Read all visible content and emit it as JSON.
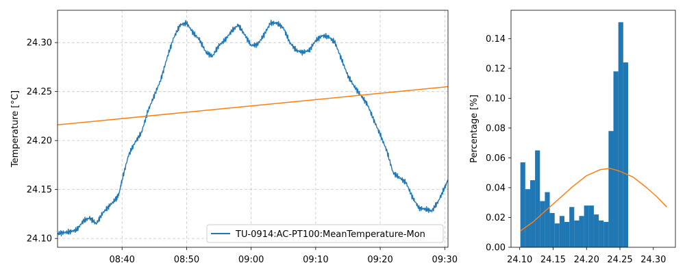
{
  "chart_data": [
    {
      "type": "line",
      "title": "",
      "xlabel": "",
      "ylabel": "Temperature [°C]",
      "x_unit": "time (HH:MM)",
      "xlim": [
        "08:30:00",
        "09:30:30"
      ],
      "ylim": [
        24.091,
        24.333
      ],
      "xticks": [
        "08:40",
        "08:50",
        "09:00",
        "09:10",
        "09:20",
        "09:30"
      ],
      "yticks": [
        "24.10",
        "24.15",
        "24.20",
        "24.25",
        "24.30"
      ],
      "grid": true,
      "legend": {
        "position": "lower-right",
        "entries": [
          "TU-0914:AC-PT100:MeanTemperature-Mon"
        ]
      },
      "series": [
        {
          "name": "TU-0914:AC-PT100:MeanTemperature-Mon",
          "color": "#1f77b4",
          "points": [
            [
              "08:30:00",
              24.105
            ],
            [
              "08:31:00",
              24.106
            ],
            [
              "08:32:00",
              24.107
            ],
            [
              "08:33:00",
              24.109
            ],
            [
              "08:34:00",
              24.118
            ],
            [
              "08:35:00",
              24.121
            ],
            [
              "08:36:00",
              24.115
            ],
            [
              "08:37:00",
              24.126
            ],
            [
              "08:38:00",
              24.133
            ],
            [
              "08:39:00",
              24.14
            ],
            [
              "08:39:30",
              24.145
            ],
            [
              "08:40:00",
              24.16
            ],
            [
              "08:41:00",
              24.185
            ],
            [
              "08:42:00",
              24.198
            ],
            [
              "08:43:00",
              24.208
            ],
            [
              "08:44:00",
              24.23
            ],
            [
              "08:45:00",
              24.246
            ],
            [
              "08:46:00",
              24.262
            ],
            [
              "08:47:00",
              24.285
            ],
            [
              "08:48:00",
              24.305
            ],
            [
              "08:49:00",
              24.318
            ],
            [
              "08:50:00",
              24.32
            ],
            [
              "08:51:00",
              24.31
            ],
            [
              "08:52:00",
              24.303
            ],
            [
              "08:53:00",
              24.29
            ],
            [
              "08:54:00",
              24.286
            ],
            [
              "08:55:00",
              24.297
            ],
            [
              "08:56:00",
              24.303
            ],
            [
              "08:57:00",
              24.312
            ],
            [
              "08:58:00",
              24.318
            ],
            [
              "08:59:00",
              24.308
            ],
            [
              "09:00:00",
              24.297
            ],
            [
              "09:01:00",
              24.298
            ],
            [
              "09:02:00",
              24.308
            ],
            [
              "09:03:00",
              24.32
            ],
            [
              "09:04:00",
              24.32
            ],
            [
              "09:05:00",
              24.315
            ],
            [
              "09:06:00",
              24.3
            ],
            [
              "09:07:00",
              24.292
            ],
            [
              "09:08:00",
              24.29
            ],
            [
              "09:09:00",
              24.292
            ],
            [
              "09:10:00",
              24.302
            ],
            [
              "09:11:00",
              24.307
            ],
            [
              "09:12:00",
              24.306
            ],
            [
              "09:13:00",
              24.3
            ],
            [
              "09:14:00",
              24.283
            ],
            [
              "09:15:00",
              24.266
            ],
            [
              "09:16:00",
              24.255
            ],
            [
              "09:17:00",
              24.246
            ],
            [
              "09:18:00",
              24.237
            ],
            [
              "09:19:00",
              24.221
            ],
            [
              "09:20:00",
              24.206
            ],
            [
              "09:21:00",
              24.19
            ],
            [
              "09:22:00",
              24.167
            ],
            [
              "09:23:00",
              24.162
            ],
            [
              "09:24:00",
              24.157
            ],
            [
              "09:25:00",
              24.142
            ],
            [
              "09:26:00",
              24.131
            ],
            [
              "09:27:00",
              24.13
            ],
            [
              "09:28:00",
              24.128
            ],
            [
              "09:29:00",
              24.138
            ],
            [
              "09:30:00",
              24.152
            ],
            [
              "09:30:30",
              24.16
            ]
          ]
        },
        {
          "name": "",
          "color": "#ff7f0e",
          "points": [
            [
              "08:30:00",
              24.216
            ],
            [
              "09:30:30",
              24.255
            ]
          ]
        }
      ]
    },
    {
      "type": "bar",
      "title": "",
      "xlabel": "",
      "ylabel": "Percentage [%]",
      "xlim": [
        24.087,
        24.333
      ],
      "ylim": [
        0,
        0.159
      ],
      "xticks": [
        "24.10",
        "24.15",
        "24.20",
        "24.25",
        "24.30"
      ],
      "yticks": [
        "0.00",
        "0.02",
        "0.04",
        "0.06",
        "0.08",
        "0.10",
        "0.12",
        "0.14"
      ],
      "grid": false,
      "bar_color": "#1f77b4",
      "bins": {
        "start": 24.101,
        "width": 0.00733,
        "values": [
          0.057,
          0.039,
          0.045,
          0.065,
          0.031,
          0.037,
          0.023,
          0.016,
          0.021,
          0.017,
          0.027,
          0.018,
          0.021,
          0.028,
          0.028,
          0.022,
          0.018,
          0.017,
          0.078,
          0.118,
          0.151,
          0.124
        ]
      },
      "fit_curve": {
        "color": "#ff7f0e",
        "points": [
          [
            24.101,
            0.011
          ],
          [
            24.12,
            0.017
          ],
          [
            24.14,
            0.025
          ],
          [
            24.16,
            0.033
          ],
          [
            24.18,
            0.041
          ],
          [
            24.2,
            0.048
          ],
          [
            24.22,
            0.052
          ],
          [
            24.235,
            0.053
          ],
          [
            24.25,
            0.051
          ],
          [
            24.27,
            0.047
          ],
          [
            24.29,
            0.04
          ],
          [
            24.305,
            0.034
          ],
          [
            24.32,
            0.027
          ]
        ]
      }
    }
  ]
}
